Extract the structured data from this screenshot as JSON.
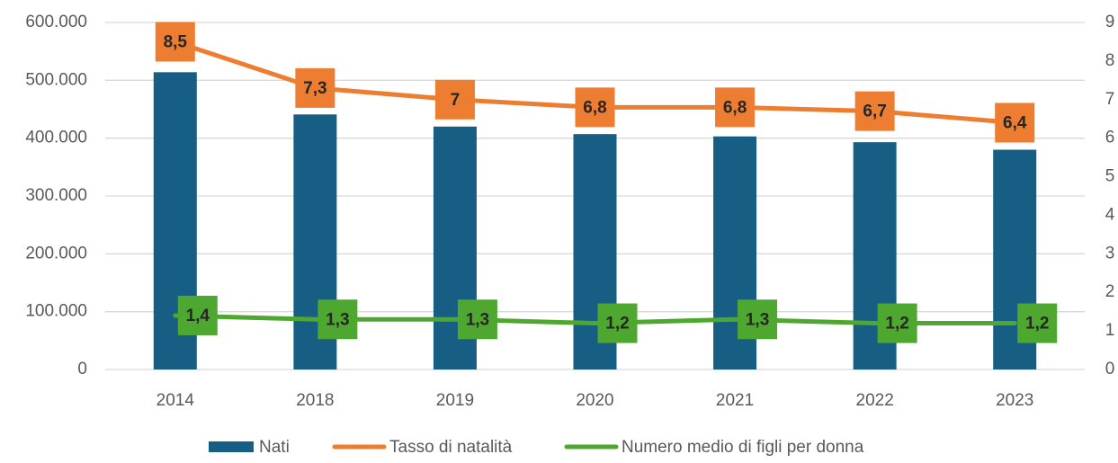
{
  "chart_data": {
    "type": "bar",
    "categories": [
      "2014",
      "2018",
      "2019",
      "2020",
      "2021",
      "2022",
      "2023"
    ],
    "series": [
      {
        "name": "Nati",
        "type": "bar",
        "color": "#165e83",
        "values": [
          514000,
          441000,
          420000,
          407000,
          403000,
          393000,
          380000
        ]
      },
      {
        "name": "Tasso di natalità",
        "type": "line",
        "axis": "y2",
        "color": "#ed7d31",
        "values": [
          8.5,
          7.3,
          7,
          6.8,
          6.8,
          6.7,
          6.4
        ],
        "value_labels": [
          "8,5",
          "7,3",
          "7",
          "6,8",
          "6,8",
          "6,7",
          "6,4"
        ]
      },
      {
        "name": "Numero medio di figli per donna",
        "type": "line",
        "axis": "y2",
        "color": "#4ea72e",
        "values": [
          1.4,
          1.3,
          1.3,
          1.2,
          1.3,
          1.2,
          1.2
        ],
        "value_labels": [
          "1,4",
          "1,3",
          "1,3",
          "1,2",
          "1,3",
          "1,2",
          "1,2"
        ]
      }
    ],
    "ylim": [
      0,
      600000
    ],
    "yticks": [
      0,
      {
        "value": 100000,
        "label": "100.000"
      },
      {
        "value": 200000,
        "label": "200.000"
      },
      {
        "value": 300000,
        "label": "300.000"
      },
      {
        "value": 400000,
        "label": "400.000"
      },
      {
        "value": 500000,
        "label": "500.000"
      },
      {
        "value": 600000,
        "label": "600.000"
      }
    ],
    "y2lim": [
      0,
      9
    ],
    "y2ticks": [
      0,
      1,
      2,
      3,
      4,
      5,
      6,
      7,
      8,
      9
    ],
    "grid": true,
    "legend": "bottom"
  }
}
